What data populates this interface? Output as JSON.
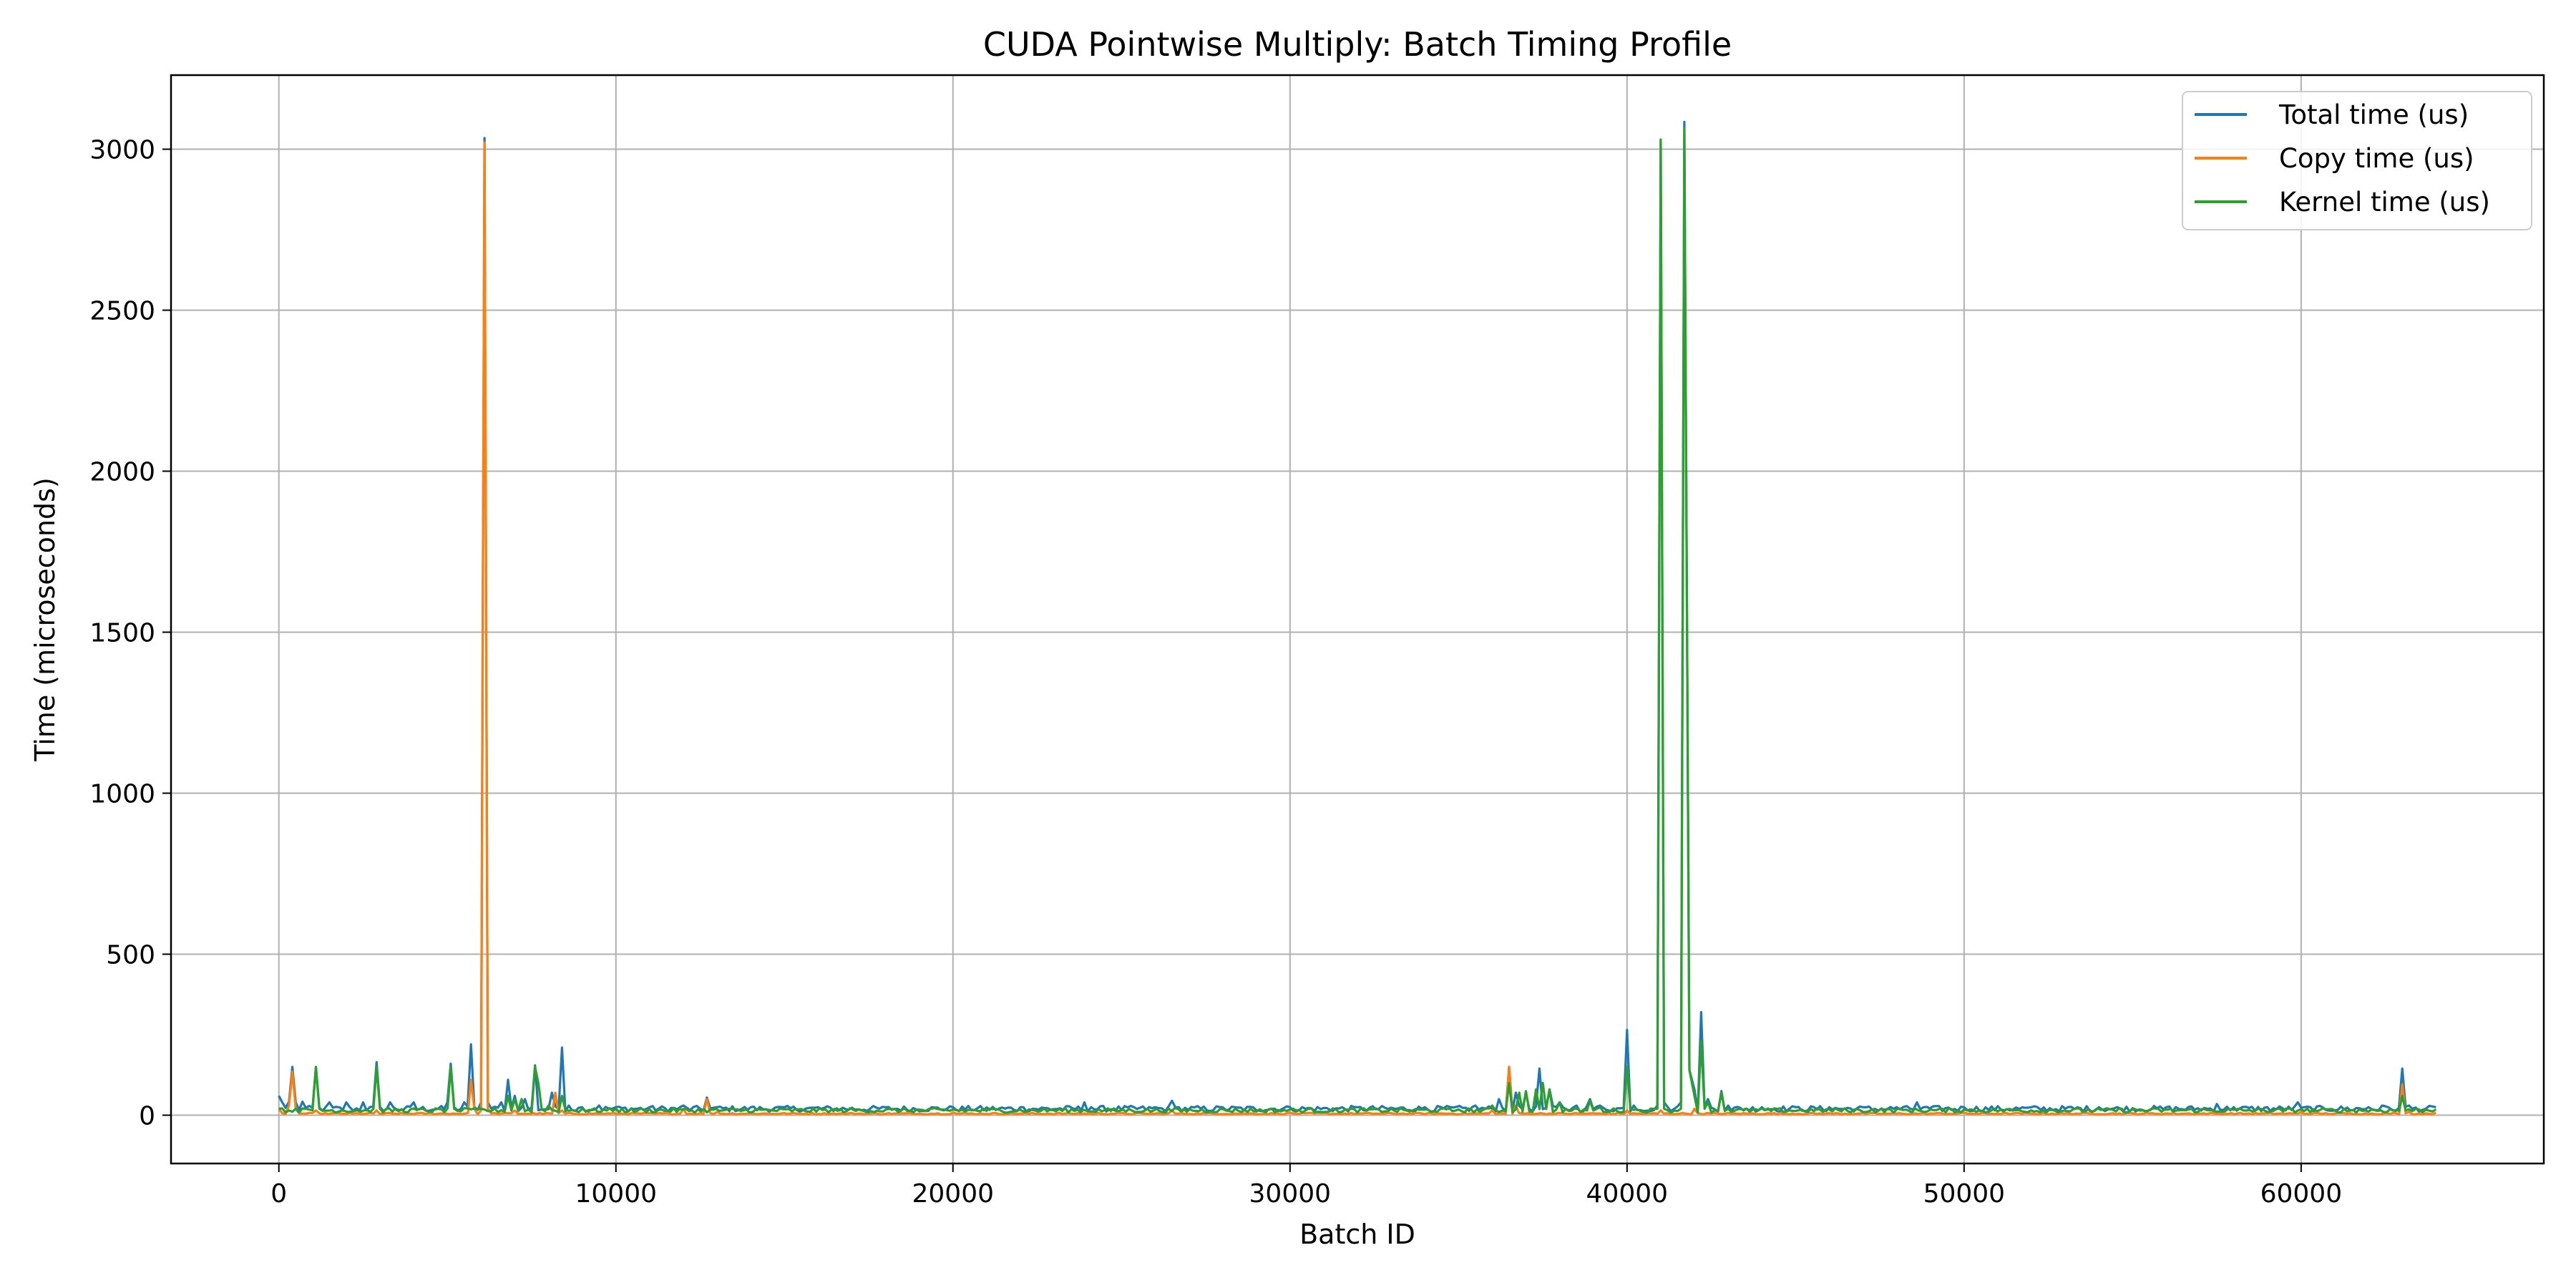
{
  "chart_data": {
    "type": "line",
    "title": "CUDA Pointwise Multiply: Batch Timing Profile",
    "xlabel": "Batch ID",
    "ylabel": "Time (microseconds)",
    "xlim": [
      -3200,
      67200
    ],
    "ylim": [
      -150,
      3230
    ],
    "xticks": [
      0,
      10000,
      20000,
      30000,
      40000,
      50000,
      60000
    ],
    "yticks": [
      0,
      500,
      1000,
      1500,
      2000,
      2500,
      3000
    ],
    "grid": true,
    "legend_position": "top-right",
    "series": [
      {
        "name": "Total time (us)",
        "color": "#1f77b4",
        "baseline": 20,
        "points": [
          [
            0,
            60
          ],
          [
            100,
            40
          ],
          [
            300,
            42
          ],
          [
            400,
            150
          ],
          [
            500,
            40
          ],
          [
            700,
            42
          ],
          [
            1100,
            150
          ],
          [
            1500,
            40
          ],
          [
            2000,
            40
          ],
          [
            2500,
            40
          ],
          [
            2900,
            165
          ],
          [
            3300,
            40
          ],
          [
            4000,
            40
          ],
          [
            5000,
            40
          ],
          [
            5100,
            160
          ],
          [
            5500,
            40
          ],
          [
            5700,
            220
          ],
          [
            6000,
            40
          ],
          [
            6100,
            3035
          ],
          [
            6200,
            40
          ],
          [
            6600,
            40
          ],
          [
            6800,
            110
          ],
          [
            7000,
            60
          ],
          [
            7300,
            50
          ],
          [
            7600,
            155
          ],
          [
            8100,
            70
          ],
          [
            8400,
            210
          ],
          [
            8600,
            30
          ],
          [
            9000,
            25
          ],
          [
            9500,
            30
          ],
          [
            10000,
            25
          ],
          [
            11000,
            25
          ],
          [
            12000,
            30
          ],
          [
            12700,
            55
          ],
          [
            13000,
            25
          ],
          [
            14000,
            25
          ],
          [
            15000,
            25
          ],
          [
            16000,
            25
          ],
          [
            18000,
            25
          ],
          [
            20000,
            25
          ],
          [
            22000,
            25
          ],
          [
            23900,
            40
          ],
          [
            24100,
            25
          ],
          [
            26000,
            25
          ],
          [
            26500,
            45
          ],
          [
            26700,
            25
          ],
          [
            28000,
            25
          ],
          [
            30000,
            25
          ],
          [
            32000,
            25
          ],
          [
            34000,
            25
          ],
          [
            35500,
            30
          ],
          [
            36200,
            50
          ],
          [
            36500,
            150
          ],
          [
            36700,
            70
          ],
          [
            37000,
            70
          ],
          [
            37400,
            145
          ],
          [
            37700,
            80
          ],
          [
            38000,
            40
          ],
          [
            38500,
            30
          ],
          [
            38900,
            50
          ],
          [
            39200,
            30
          ],
          [
            40000,
            265
          ],
          [
            40200,
            30
          ],
          [
            40900,
            30
          ],
          [
            41000,
            3025
          ],
          [
            41100,
            40
          ],
          [
            41600,
            40
          ],
          [
            41700,
            3085
          ],
          [
            41850,
            140
          ],
          [
            42000,
            80
          ],
          [
            42200,
            320
          ],
          [
            42400,
            50
          ],
          [
            42800,
            75
          ],
          [
            43000,
            30
          ],
          [
            44000,
            25
          ],
          [
            45000,
            25
          ],
          [
            46000,
            25
          ],
          [
            47000,
            25
          ],
          [
            48000,
            25
          ],
          [
            48600,
            40
          ],
          [
            48800,
            25
          ],
          [
            50000,
            25
          ],
          [
            52000,
            25
          ],
          [
            54000,
            25
          ],
          [
            56000,
            25
          ],
          [
            57500,
            35
          ],
          [
            58000,
            25
          ],
          [
            59900,
            40
          ],
          [
            60100,
            25
          ],
          [
            62000,
            25
          ],
          [
            62400,
            30
          ],
          [
            63000,
            145
          ],
          [
            63200,
            30
          ],
          [
            64000,
            25
          ]
        ]
      },
      {
        "name": "Copy time (us)",
        "color": "#ff7f0e",
        "baseline": 5,
        "points": [
          [
            0,
            20
          ],
          [
            300,
            30
          ],
          [
            400,
            135
          ],
          [
            500,
            20
          ],
          [
            1100,
            15
          ],
          [
            2900,
            15
          ],
          [
            5700,
            110
          ],
          [
            5800,
            20
          ],
          [
            6000,
            15
          ],
          [
            6100,
            3020
          ],
          [
            6200,
            20
          ],
          [
            7000,
            15
          ],
          [
            8200,
            70
          ],
          [
            8400,
            15
          ],
          [
            12000,
            20
          ],
          [
            12700,
            50
          ],
          [
            13000,
            10
          ],
          [
            20000,
            8
          ],
          [
            26500,
            15
          ],
          [
            30000,
            8
          ],
          [
            36000,
            15
          ],
          [
            36500,
            150
          ],
          [
            36700,
            30
          ],
          [
            40000,
            15
          ],
          [
            41000,
            15
          ],
          [
            42000,
            20
          ],
          [
            50000,
            8
          ],
          [
            60000,
            10
          ],
          [
            63000,
            95
          ],
          [
            63200,
            10
          ],
          [
            64000,
            8
          ]
        ]
      },
      {
        "name": "Kernel time (us)",
        "color": "#2ca02c",
        "baseline": 15,
        "points": [
          [
            0,
            20
          ],
          [
            500,
            20
          ],
          [
            1100,
            150
          ],
          [
            1200,
            20
          ],
          [
            2900,
            150
          ],
          [
            3000,
            20
          ],
          [
            5100,
            150
          ],
          [
            5200,
            20
          ],
          [
            6000,
            20
          ],
          [
            6800,
            60
          ],
          [
            7000,
            50
          ],
          [
            7200,
            50
          ],
          [
            7600,
            150
          ],
          [
            7700,
            100
          ],
          [
            8000,
            30
          ],
          [
            8400,
            60
          ],
          [
            9000,
            20
          ],
          [
            10000,
            20
          ],
          [
            20000,
            18
          ],
          [
            30000,
            18
          ],
          [
            35000,
            18
          ],
          [
            36000,
            30
          ],
          [
            36500,
            100
          ],
          [
            36800,
            70
          ],
          [
            37000,
            75
          ],
          [
            37300,
            80
          ],
          [
            37500,
            100
          ],
          [
            37700,
            80
          ],
          [
            38000,
            40
          ],
          [
            38900,
            45
          ],
          [
            39200,
            25
          ],
          [
            40000,
            150
          ],
          [
            40100,
            20
          ],
          [
            40900,
            20
          ],
          [
            41000,
            3030
          ],
          [
            41100,
            20
          ],
          [
            41600,
            20
          ],
          [
            41700,
            3065
          ],
          [
            41850,
            140
          ],
          [
            42000,
            60
          ],
          [
            42200,
            230
          ],
          [
            42400,
            40
          ],
          [
            42800,
            70
          ],
          [
            43000,
            20
          ],
          [
            50000,
            18
          ],
          [
            60000,
            18
          ],
          [
            63000,
            60
          ],
          [
            63200,
            18
          ],
          [
            64000,
            18
          ]
        ]
      }
    ]
  }
}
